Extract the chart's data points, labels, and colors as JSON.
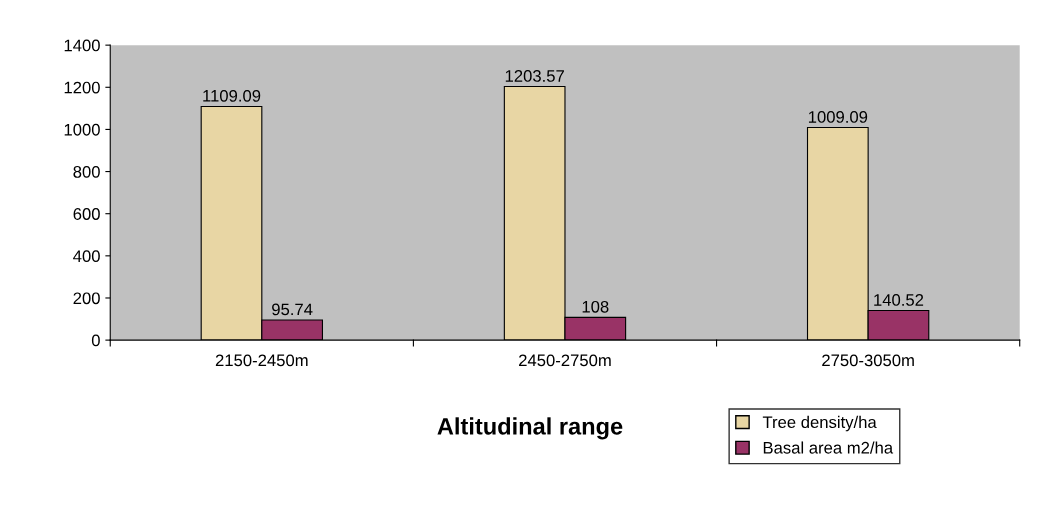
{
  "chart_data": {
    "type": "bar",
    "xlabel": "Altitudinal range",
    "categories": [
      "2150-2450m",
      "2450-2750m",
      "2750-3050m"
    ],
    "series": [
      {
        "name": "Tree density/ha",
        "color": "#e8d6a4",
        "values": [
          1109.09,
          1203.57,
          1009.09
        ]
      },
      {
        "name": "Basal area m2/ha",
        "color": "#993366",
        "values": [
          95.74,
          108,
          140.52
        ]
      }
    ],
    "ylim": [
      0,
      1400
    ],
    "yticks": [
      0,
      200,
      400,
      600,
      800,
      1000,
      1200,
      1400
    ],
    "grid": false,
    "legend": "bottom right",
    "data_labels": true
  }
}
